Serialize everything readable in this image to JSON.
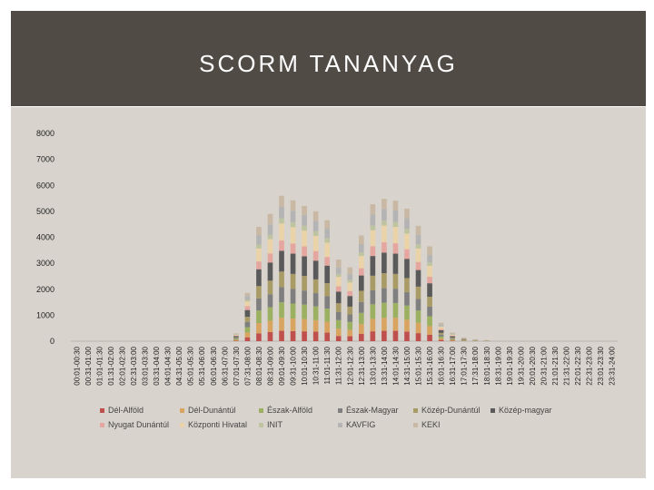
{
  "slide": {
    "title": "SCORM TANANYAG"
  },
  "chart_data": {
    "type": "bar",
    "stacked": true,
    "ylim": [
      0,
      8000
    ],
    "yticks": [
      0,
      1000,
      2000,
      3000,
      4000,
      5000,
      6000,
      7000,
      8000
    ],
    "grid": false,
    "legend_position": "bottom",
    "categories": [
      "00:01-00:30",
      "00:31-01:00",
      "01:01-01:30",
      "01:31-02:00",
      "02:01-02:30",
      "02:31-03:00",
      "03:01-03:30",
      "03:31-04:00",
      "04:01-04:30",
      "04:31-05:00",
      "05:01-05:30",
      "05:31-06:00",
      "06:01-06:30",
      "06:31-07:00",
      "07:01-07:30",
      "07:31-08:00",
      "08:01-08:30",
      "08:31-09:00",
      "09:01-09:30",
      "09:31-10:00",
      "10:01-10:30",
      "10:31-11:00",
      "11:01-11:30",
      "11:31-12:00",
      "12:01-12:30",
      "12:31-13:00",
      "13:01-13:30",
      "13:31-14:00",
      "14:01-14:30",
      "14:31-15:00",
      "15:01-15:30",
      "15:31-16:00",
      "16:01-16:30",
      "16:31-17:00",
      "17:01-17:30",
      "17:31-18:00",
      "18:01-18:30",
      "18:31-19:00",
      "19:01-19:30",
      "19:31-20:00",
      "20:01-20:30",
      "20:31-21:00",
      "21:01-21:30",
      "21:31-22:00",
      "22:01-22:30",
      "22:31-23:00",
      "23:01-23:30",
      "23:31-24:00"
    ],
    "series": [
      {
        "name": "Dél-Alföld",
        "color": "#c0504d",
        "values": [
          0,
          0,
          0,
          0,
          0,
          0,
          0,
          0,
          0,
          0,
          0,
          0,
          0,
          0,
          20,
          150,
          300,
          350,
          400,
          390,
          380,
          370,
          330,
          200,
          190,
          280,
          380,
          400,
          400,
          370,
          310,
          250,
          50,
          20,
          10,
          5,
          3,
          0,
          0,
          0,
          0,
          0,
          0,
          0,
          0,
          0,
          0,
          0
        ]
      },
      {
        "name": "Dél-Dunántúl",
        "color": "#d8a460",
        "values": [
          0,
          0,
          0,
          0,
          0,
          0,
          0,
          0,
          0,
          0,
          0,
          0,
          0,
          0,
          30,
          180,
          400,
          440,
          500,
          480,
          470,
          440,
          420,
          280,
          250,
          380,
          480,
          500,
          500,
          460,
          400,
          330,
          60,
          30,
          10,
          5,
          3,
          0,
          0,
          0,
          0,
          0,
          0,
          0,
          0,
          0,
          0,
          0
        ]
      },
      {
        "name": "Észak-Alföld",
        "color": "#9bb060",
        "values": [
          0,
          0,
          0,
          0,
          0,
          0,
          0,
          0,
          0,
          0,
          0,
          0,
          0,
          0,
          40,
          210,
          480,
          520,
          600,
          580,
          560,
          530,
          500,
          330,
          300,
          430,
          560,
          580,
          570,
          540,
          470,
          380,
          70,
          30,
          15,
          8,
          4,
          0,
          0,
          0,
          0,
          0,
          0,
          0,
          0,
          0,
          0,
          0
        ]
      },
      {
        "name": "Észak-Magyar",
        "color": "#7f7f7f",
        "values": [
          0,
          0,
          0,
          0,
          0,
          0,
          0,
          0,
          0,
          0,
          0,
          0,
          0,
          0,
          30,
          200,
          470,
          500,
          580,
          560,
          540,
          510,
          480,
          320,
          290,
          420,
          540,
          560,
          550,
          520,
          450,
          370,
          70,
          30,
          15,
          8,
          4,
          0,
          0,
          0,
          0,
          0,
          0,
          0,
          0,
          0,
          0,
          0
        ]
      },
      {
        "name": "Közép-Dunántúl",
        "color": "#a89b66",
        "values": [
          0,
          0,
          0,
          0,
          0,
          0,
          0,
          0,
          0,
          0,
          0,
          0,
          0,
          0,
          30,
          200,
          470,
          520,
          600,
          580,
          560,
          530,
          500,
          330,
          300,
          430,
          560,
          580,
          570,
          540,
          470,
          380,
          70,
          30,
          15,
          8,
          4,
          0,
          0,
          0,
          0,
          0,
          0,
          0,
          0,
          0,
          0,
          0
        ]
      },
      {
        "name": "Közép-magyar",
        "color": "#5a5a5a",
        "values": [
          0,
          0,
          0,
          0,
          0,
          0,
          0,
          0,
          0,
          0,
          0,
          0,
          0,
          0,
          50,
          260,
          650,
          700,
          800,
          780,
          760,
          720,
          680,
          450,
          410,
          590,
          760,
          790,
          780,
          740,
          640,
          520,
          100,
          50,
          20,
          10,
          6,
          0,
          0,
          0,
          0,
          0,
          0,
          0,
          0,
          0,
          0,
          0
        ]
      },
      {
        "name": "Nyugat Dunántúl",
        "color": "#e6a6a0",
        "values": [
          0,
          0,
          0,
          0,
          0,
          0,
          0,
          0,
          0,
          0,
          0,
          0,
          0,
          0,
          20,
          150,
          300,
          350,
          400,
          390,
          380,
          370,
          330,
          200,
          190,
          280,
          380,
          400,
          400,
          370,
          310,
          250,
          50,
          20,
          10,
          5,
          3,
          0,
          0,
          0,
          0,
          0,
          0,
          0,
          0,
          0,
          0,
          0
        ]
      },
      {
        "name": "Központi Hivatal",
        "color": "#ead3a8",
        "values": [
          0,
          0,
          0,
          0,
          0,
          0,
          0,
          0,
          0,
          0,
          0,
          0,
          0,
          0,
          30,
          180,
          500,
          550,
          650,
          630,
          610,
          580,
          550,
          370,
          330,
          470,
          610,
          640,
          630,
          600,
          520,
          420,
          80,
          40,
          15,
          8,
          5,
          0,
          0,
          0,
          0,
          0,
          0,
          0,
          0,
          0,
          0,
          0
        ]
      },
      {
        "name": "INIT",
        "color": "#bfc4a0",
        "values": [
          0,
          0,
          0,
          0,
          0,
          0,
          0,
          0,
          0,
          0,
          0,
          0,
          0,
          0,
          10,
          60,
          150,
          170,
          200,
          190,
          185,
          180,
          170,
          110,
          100,
          140,
          185,
          190,
          190,
          180,
          160,
          130,
          30,
          15,
          5,
          3,
          2,
          0,
          0,
          0,
          0,
          0,
          0,
          0,
          0,
          0,
          0,
          0
        ]
      },
      {
        "name": "KAVFIG",
        "color": "#b4b4b4",
        "values": [
          0,
          0,
          0,
          0,
          0,
          0,
          0,
          0,
          0,
          0,
          0,
          0,
          0,
          0,
          20,
          150,
          350,
          400,
          450,
          440,
          420,
          400,
          370,
          250,
          220,
          320,
          420,
          440,
          440,
          410,
          360,
          290,
          60,
          25,
          10,
          5,
          3,
          0,
          0,
          0,
          0,
          0,
          0,
          0,
          0,
          0,
          0,
          0
        ]
      },
      {
        "name": "KEKI",
        "color": "#c9b8a3",
        "values": [
          0,
          0,
          0,
          0,
          0,
          0,
          0,
          0,
          0,
          0,
          0,
          0,
          0,
          0,
          20,
          120,
          330,
          400,
          420,
          400,
          340,
          370,
          330,
          300,
          260,
          330,
          400,
          400,
          380,
          370,
          350,
          330,
          70,
          40,
          20,
          10,
          6,
          0,
          0,
          0,
          0,
          0,
          0,
          0,
          0,
          0,
          0,
          0
        ]
      }
    ]
  }
}
